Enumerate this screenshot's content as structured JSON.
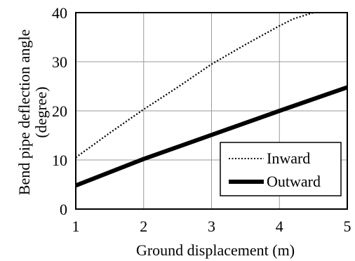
{
  "chart_data": {
    "type": "line",
    "title": "",
    "xlabel": "Ground displacement (m)",
    "ylabel_line1": "Bend pipe deflection angle",
    "ylabel_line2": "(degree)",
    "xlim": [
      1,
      5
    ],
    "ylim": [
      0,
      40
    ],
    "xticks": [
      "1",
      "2",
      "3",
      "4",
      "5"
    ],
    "yticks": [
      "0",
      "10",
      "20",
      "30",
      "40"
    ],
    "grid": true,
    "legend_position": "bottom-right",
    "series": [
      {
        "name": "Inward",
        "style": "dotted",
        "color": "#000000",
        "x": [
          1.0,
          1.5,
          2.0,
          2.5,
          3.0,
          3.5,
          4.0,
          4.2,
          4.5
        ],
        "y": [
          10.5,
          15.5,
          20.3,
          24.8,
          29.5,
          33.5,
          37.3,
          38.7,
          40.0
        ]
      },
      {
        "name": "Outward",
        "style": "solid-thick",
        "color": "#000000",
        "x": [
          1.0,
          2.0,
          3.0,
          4.0,
          5.0
        ],
        "y": [
          4.8,
          10.2,
          15.1,
          20.0,
          24.8
        ]
      }
    ]
  }
}
